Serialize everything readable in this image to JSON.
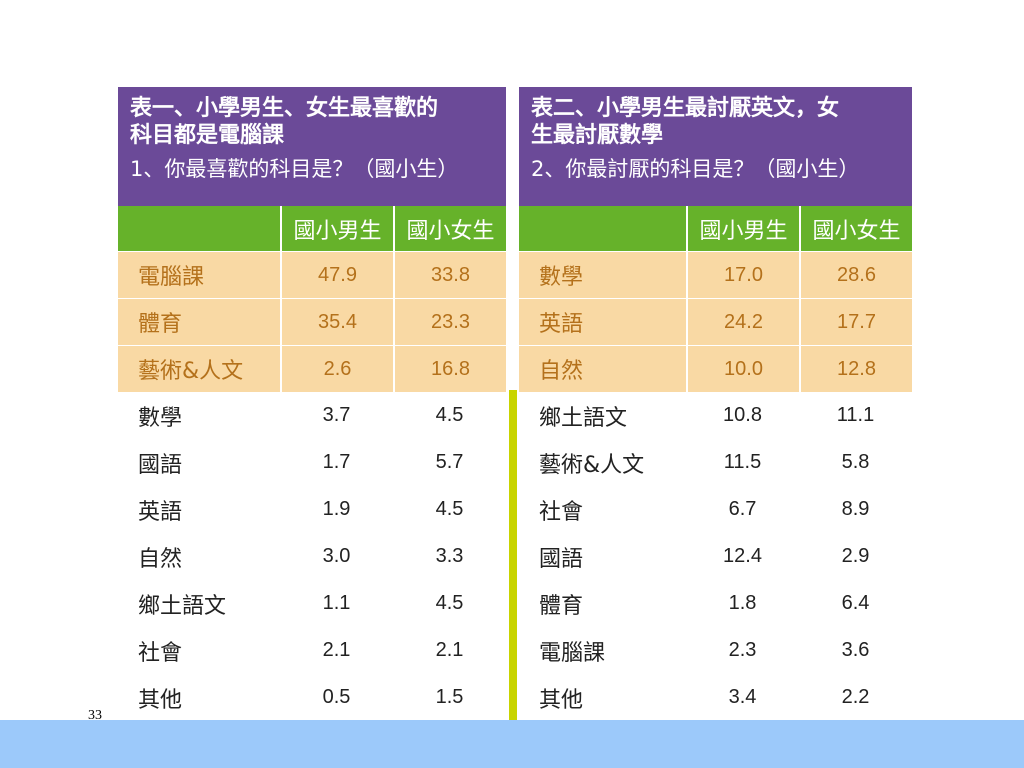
{
  "page_number": "33",
  "table1": {
    "title": "表一、小學男生、女生最喜歡的科目都是電腦課",
    "title_line1": "表一、小學男生、女生最喜歡的",
    "title_line2": "科目都是電腦課",
    "question": "1、你最喜歡的科目是？（國小生）",
    "headers": [
      "國小男生",
      "國小女生"
    ],
    "rows": [
      {
        "subject": "電腦課",
        "boys": "47.9",
        "girls": "33.8",
        "highlight": true
      },
      {
        "subject": "體育",
        "boys": "35.4",
        "girls": "23.3",
        "highlight": true
      },
      {
        "subject": "藝術&人文",
        "boys": "2.6",
        "girls": "16.8",
        "highlight": true
      },
      {
        "subject": "數學",
        "boys": "3.7",
        "girls": "4.5",
        "highlight": false
      },
      {
        "subject": "國語",
        "boys": "1.7",
        "girls": "5.7",
        "highlight": false
      },
      {
        "subject": "英語",
        "boys": "1.9",
        "girls": "4.5",
        "highlight": false
      },
      {
        "subject": "自然",
        "boys": "3.0",
        "girls": "3.3",
        "highlight": false
      },
      {
        "subject": "鄉土語文",
        "boys": "1.1",
        "girls": "4.5",
        "highlight": false
      },
      {
        "subject": "社會",
        "boys": "2.1",
        "girls": "2.1",
        "highlight": false
      },
      {
        "subject": "其他",
        "boys": "0.5",
        "girls": "1.5",
        "highlight": false
      }
    ]
  },
  "table2": {
    "title_line1": "表二、小學男生最討厭英文，女",
    "title_line2": "生最討厭數學",
    "question": "2、你最討厭的科目是？（國小生）",
    "headers": [
      "國小男生",
      "國小女生"
    ],
    "rows": [
      {
        "subject": "數學",
        "boys": "17.0",
        "girls": "28.6",
        "highlight": true
      },
      {
        "subject": "英語",
        "boys": "24.2",
        "girls": "17.7",
        "highlight": true
      },
      {
        "subject": "自然",
        "boys": "10.0",
        "girls": "12.8",
        "highlight": true
      },
      {
        "subject": "鄉土語文",
        "boys": "10.8",
        "girls": "11.1",
        "highlight": false
      },
      {
        "subject": "藝術&人文",
        "boys": "11.5",
        "girls": "5.8",
        "highlight": false
      },
      {
        "subject": "社會",
        "boys": "6.7",
        "girls": "8.9",
        "highlight": false
      },
      {
        "subject": "國語",
        "boys": "12.4",
        "girls": "2.9",
        "highlight": false
      },
      {
        "subject": "體育",
        "boys": "1.8",
        "girls": "6.4",
        "highlight": false
      },
      {
        "subject": "電腦課",
        "boys": "2.3",
        "girls": "3.6",
        "highlight": false
      },
      {
        "subject": "其他",
        "boys": "3.4",
        "girls": "2.2",
        "highlight": false
      }
    ]
  },
  "colors": {
    "title_bg": "#6b4a98",
    "header_bg": "#66b22a",
    "highlight_bg": "#f9d9a4",
    "highlight_text": "#b4711b",
    "divider": "#c8d400",
    "footer_band": "#9cc9fa"
  }
}
